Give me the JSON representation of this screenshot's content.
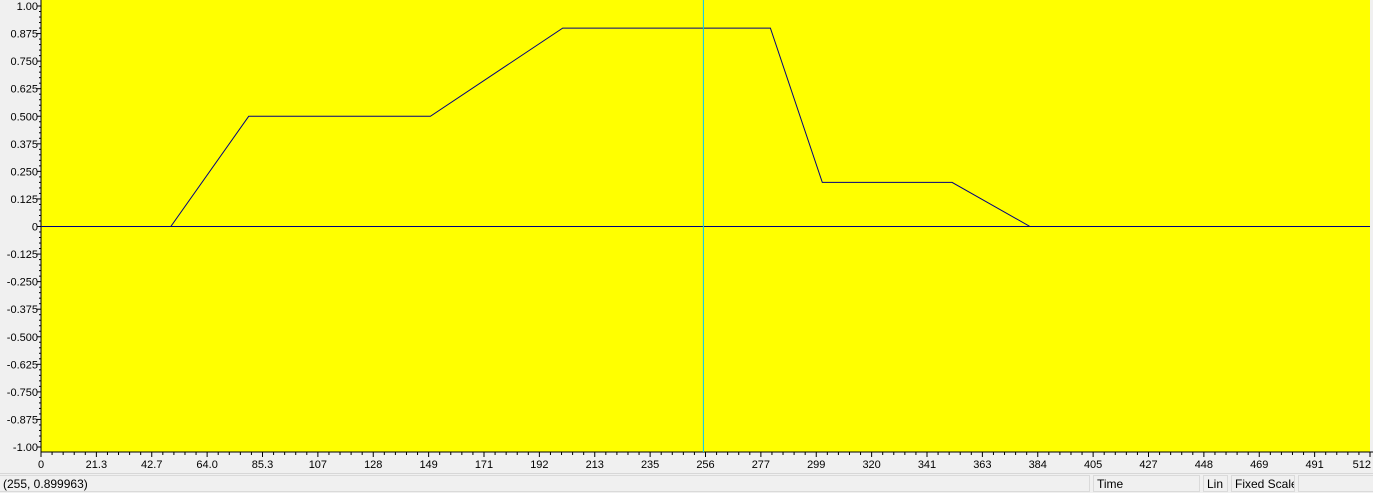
{
  "chart_data": {
    "type": "line",
    "title": "",
    "xlabel": "",
    "ylabel": "",
    "xlim": [
      0,
      512
    ],
    "ylim": [
      -1.0,
      1.0
    ],
    "x_ticks": [
      "0",
      "21.3",
      "42.7",
      "64.0",
      "85.3",
      "107",
      "128",
      "149",
      "171",
      "192",
      "213",
      "235",
      "256",
      "277",
      "299",
      "320",
      "341",
      "363",
      "384",
      "405",
      "427",
      "448",
      "469",
      "491",
      "512"
    ],
    "y_ticks": [
      "1.00",
      "0.875",
      "0.750",
      "0.625",
      "0.500",
      "0.375",
      "0.250",
      "0.125",
      "0",
      "-0.125",
      "-0.250",
      "-0.375",
      "-0.500",
      "-0.625",
      "-0.750",
      "-0.875",
      "-1.00"
    ],
    "grid": false,
    "background_color": "#ffff00",
    "line_color": "#000080",
    "zero_line_color": "#000080",
    "cursor_color": "#00c8ff",
    "cursor_x": 255,
    "series": [
      {
        "x": [
          0,
          50,
          80,
          150,
          201,
          241,
          281,
          301,
          351,
          381,
          512
        ],
        "y": [
          0,
          0,
          0.5,
          0.5,
          0.9,
          0.9,
          0.9,
          0.2,
          0.2,
          0,
          0
        ]
      }
    ]
  },
  "statusbar": {
    "coords": "(255, 0.899963)",
    "domain": "Time",
    "scale": "Lin",
    "fixed_scale": "Fixed Scale",
    "extra": ""
  }
}
